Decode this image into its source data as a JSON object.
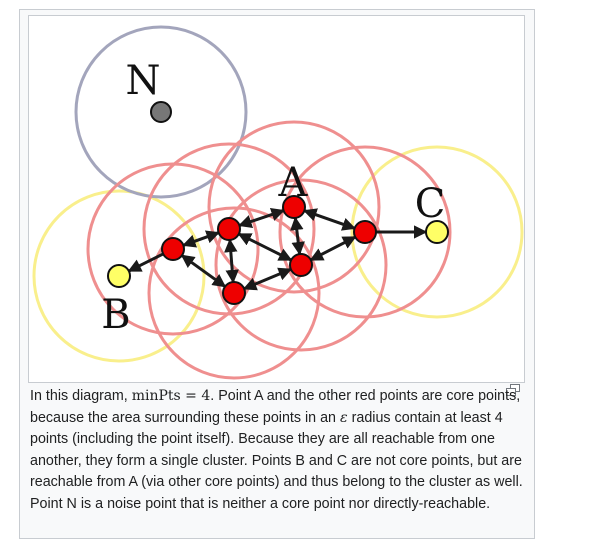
{
  "figure": {
    "labels": {
      "noise": "N",
      "core": "A",
      "border_b": "B",
      "border_c": "C"
    },
    "colors": {
      "noise_ring": "#a3a5bc",
      "core_ring": "#ef8f8f",
      "border_ring": "#f9ef8c",
      "core_point": "#ee0000",
      "border_point": "#ffff66",
      "noise_point": "#777777",
      "arrow": "#1a1a1a"
    }
  },
  "caption": {
    "part1": "In this diagram, ",
    "math": "minPts = 4",
    "part2": ". Point A and the other red points are core points, because the area surrounding these points in an ",
    "epsilon": "ε",
    "part3": " radius contain at least 4 points (including the point itself). Because they are all reachable from one another, they form a single cluster. Points B and C are not core points, but are reachable from A (via other core points) and thus belong to the cluster as well. Point N is a noise point that is neither a core point nor directly-reachable."
  },
  "controls": {
    "enlarge_icon": "enlarge-icon"
  }
}
